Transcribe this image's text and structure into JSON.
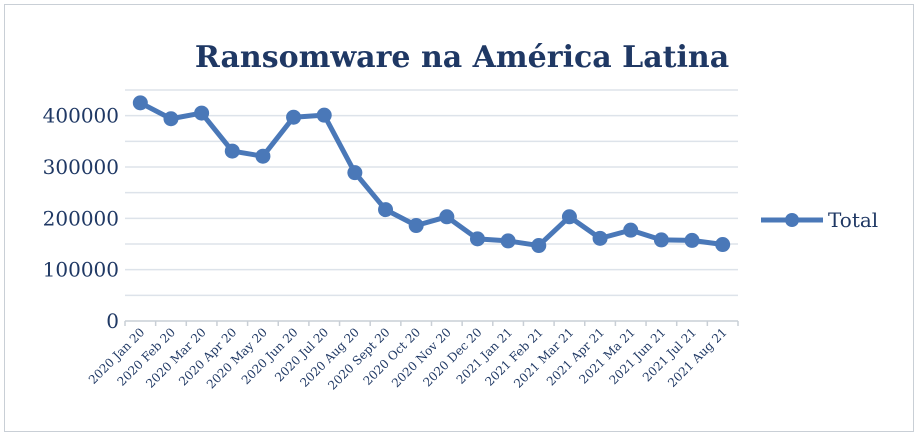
{
  "chart_data": {
    "type": "line",
    "title": "Ransomware na América Latina",
    "xlabel": "",
    "ylabel": "",
    "ylim": [
      0,
      450000
    ],
    "yticks": [
      0,
      100000,
      200000,
      300000,
      400000
    ],
    "grid": true,
    "legend_position": "right",
    "categories": [
      "2020 Jan 20",
      "2020 Feb 20",
      "2020 Mar 20",
      "2020 Apr 20",
      "2020 May 20",
      "2020 Jun 20",
      "2020 Jul 20",
      "2020 Aug 20",
      "2020 Sept 20",
      "2020 Oct 20",
      "2020 Nov 20",
      "2020 Dec 20",
      "2021 Jan 21",
      "2021 Feb 21",
      "2021 Mar 21",
      "2021 Apr 21",
      "2021 Ma 21",
      "2021 Jun 21",
      "2021 Jul 21",
      "2021 Aug 21"
    ],
    "series": [
      {
        "name": "Total",
        "color": "#4a78b8",
        "values": [
          425000,
          394000,
          405000,
          331000,
          321000,
          397000,
          401000,
          289000,
          217000,
          186000,
          203000,
          160000,
          156000,
          147000,
          203000,
          161000,
          177000,
          158000,
          157000,
          149000
        ]
      }
    ],
    "colors": {
      "grid": "#dde3ea",
      "axis": "#c9cfd6",
      "text": "#1f3864"
    }
  }
}
